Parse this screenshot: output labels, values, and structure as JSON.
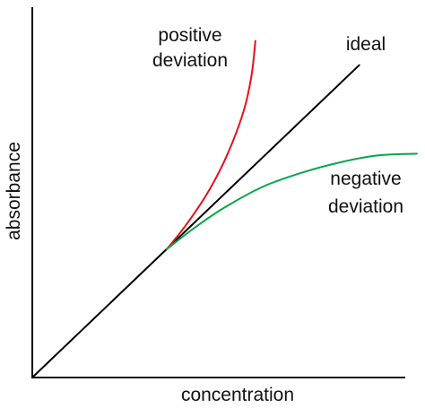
{
  "chart_data": {
    "type": "line",
    "title": "",
    "xlabel": "concentration",
    "ylabel": "absorbance",
    "xlim": [
      0,
      1
    ],
    "ylim": [
      0,
      1
    ],
    "grid": false,
    "legend": "none",
    "series": [
      {
        "name": "ideal",
        "color": "#000000",
        "x": [
          0,
          0.85
        ],
        "y": [
          0,
          0.9
        ]
      },
      {
        "name": "positive deviation",
        "label_lines": [
          "positive",
          "deviation"
        ],
        "color": "#e8101a",
        "x": [
          0.35,
          0.4,
          0.46,
          0.51,
          0.55,
          0.57,
          0.58
        ],
        "y": [
          0.37,
          0.44,
          0.54,
          0.65,
          0.77,
          0.87,
          0.97
        ]
      },
      {
        "name": "negative deviation",
        "label_lines": [
          "negative",
          "deviation"
        ],
        "color": "#0aa54a",
        "x": [
          0.35,
          0.42,
          0.5,
          0.6,
          0.7,
          0.8,
          0.9,
          1.0
        ],
        "y": [
          0.37,
          0.43,
          0.49,
          0.55,
          0.59,
          0.62,
          0.64,
          0.645
        ]
      }
    ]
  }
}
